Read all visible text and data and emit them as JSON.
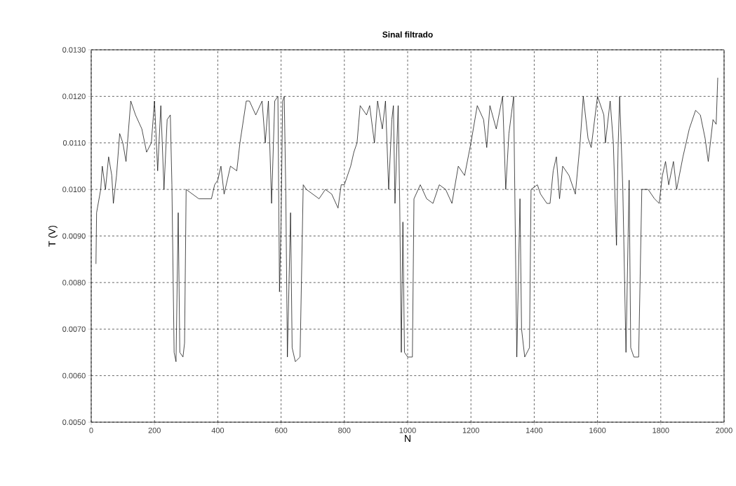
{
  "chart_data": {
    "type": "line",
    "title": "Sinal filtrado",
    "xlabel": "N",
    "ylabel": "T (V)",
    "color": "#000000",
    "grid": true,
    "xlim": [
      0,
      2000
    ],
    "ylim": [
      0.005,
      0.013
    ],
    "xticks": [
      0,
      200,
      400,
      600,
      800,
      1000,
      1200,
      1400,
      1600,
      1800,
      2000
    ],
    "yticks": [
      {
        "value": 0.005,
        "label": "0.0050"
      },
      {
        "value": 0.006,
        "label": "0.0060"
      },
      {
        "value": 0.007,
        "label": "0.0070"
      },
      {
        "value": 0.008,
        "label": "0.0080"
      },
      {
        "value": 0.009,
        "label": "0.0090"
      },
      {
        "value": 0.01,
        "label": "0.0100"
      },
      {
        "value": 0.011,
        "label": "0.0110"
      },
      {
        "value": 0.012,
        "label": "0.0120"
      },
      {
        "value": 0.013,
        "label": "0.0130"
      }
    ],
    "x": [
      15,
      17,
      30,
      35,
      45,
      55,
      65,
      70,
      80,
      90,
      100,
      110,
      125,
      140,
      160,
      175,
      190,
      200,
      210,
      220,
      230,
      240,
      250,
      255,
      262,
      268,
      275,
      280,
      290,
      295,
      300,
      320,
      340,
      360,
      380,
      390,
      400,
      410,
      420,
      440,
      460,
      470,
      490,
      500,
      520,
      540,
      550,
      560,
      570,
      580,
      590,
      595,
      600,
      605,
      610,
      615,
      620,
      630,
      635,
      645,
      660,
      670,
      680,
      700,
      720,
      740,
      760,
      780,
      790,
      800,
      820,
      830,
      840,
      850,
      870,
      880,
      895,
      905,
      920,
      930,
      940,
      950,
      955,
      960,
      970,
      975,
      980,
      985,
      990,
      1000,
      1015,
      1020,
      1040,
      1060,
      1080,
      1100,
      1120,
      1140,
      1160,
      1180,
      1200,
      1220,
      1240,
      1250,
      1260,
      1280,
      1300,
      1310,
      1320,
      1335,
      1345,
      1355,
      1360,
      1370,
      1385,
      1390,
      1410,
      1420,
      1440,
      1450,
      1460,
      1470,
      1480,
      1490,
      1510,
      1530,
      1545,
      1555,
      1570,
      1580,
      1600,
      1620,
      1625,
      1640,
      1650,
      1660,
      1665,
      1670,
      1680,
      1690,
      1700,
      1705,
      1715,
      1730,
      1740,
      1760,
      1780,
      1795,
      1805,
      1815,
      1825,
      1840,
      1850,
      1870,
      1890,
      1910,
      1925,
      1940,
      1950,
      1965,
      1975,
      1980
    ],
    "values": [
      0.0084,
      0.0095,
      0.01,
      0.0105,
      0.01,
      0.0107,
      0.0103,
      0.0097,
      0.0103,
      0.0112,
      0.011,
      0.0106,
      0.0119,
      0.0116,
      0.0113,
      0.0108,
      0.011,
      0.0119,
      0.0104,
      0.0118,
      0.01,
      0.0115,
      0.0116,
      0.0101,
      0.0065,
      0.0063,
      0.0095,
      0.0065,
      0.0064,
      0.0067,
      0.01,
      0.0099,
      0.0098,
      0.0098,
      0.0098,
      0.0101,
      0.0102,
      0.0105,
      0.0099,
      0.0105,
      0.0104,
      0.011,
      0.0119,
      0.0119,
      0.0116,
      0.0119,
      0.011,
      0.0119,
      0.0097,
      0.0119,
      0.012,
      0.0078,
      0.0093,
      0.0119,
      0.012,
      0.0099,
      0.0064,
      0.0095,
      0.0066,
      0.0063,
      0.0064,
      0.0101,
      0.01,
      0.0099,
      0.0098,
      0.01,
      0.0099,
      0.0096,
      0.0101,
      0.0101,
      0.0105,
      0.0108,
      0.011,
      0.0118,
      0.0116,
      0.0118,
      0.011,
      0.0119,
      0.0113,
      0.0119,
      0.01,
      0.0115,
      0.0118,
      0.0097,
      0.0118,
      0.0097,
      0.0065,
      0.0093,
      0.0065,
      0.0064,
      0.0064,
      0.0098,
      0.0101,
      0.0098,
      0.0097,
      0.0101,
      0.01,
      0.0097,
      0.0105,
      0.0103,
      0.011,
      0.0118,
      0.0115,
      0.0109,
      0.0118,
      0.0113,
      0.012,
      0.01,
      0.0112,
      0.012,
      0.0064,
      0.0098,
      0.007,
      0.0064,
      0.0066,
      0.01,
      0.0101,
      0.0099,
      0.0097,
      0.0097,
      0.0104,
      0.0107,
      0.0098,
      0.0105,
      0.0103,
      0.0099,
      0.011,
      0.012,
      0.0111,
      0.0109,
      0.012,
      0.0116,
      0.011,
      0.0119,
      0.011,
      0.0088,
      0.0109,
      0.012,
      0.01,
      0.0065,
      0.0102,
      0.0066,
      0.0064,
      0.0064,
      0.01,
      0.01,
      0.0098,
      0.0097,
      0.0103,
      0.0106,
      0.0101,
      0.0106,
      0.01,
      0.0107,
      0.0113,
      0.0117,
      0.0116,
      0.0111,
      0.0106,
      0.0115,
      0.0114,
      0.0124
    ]
  }
}
